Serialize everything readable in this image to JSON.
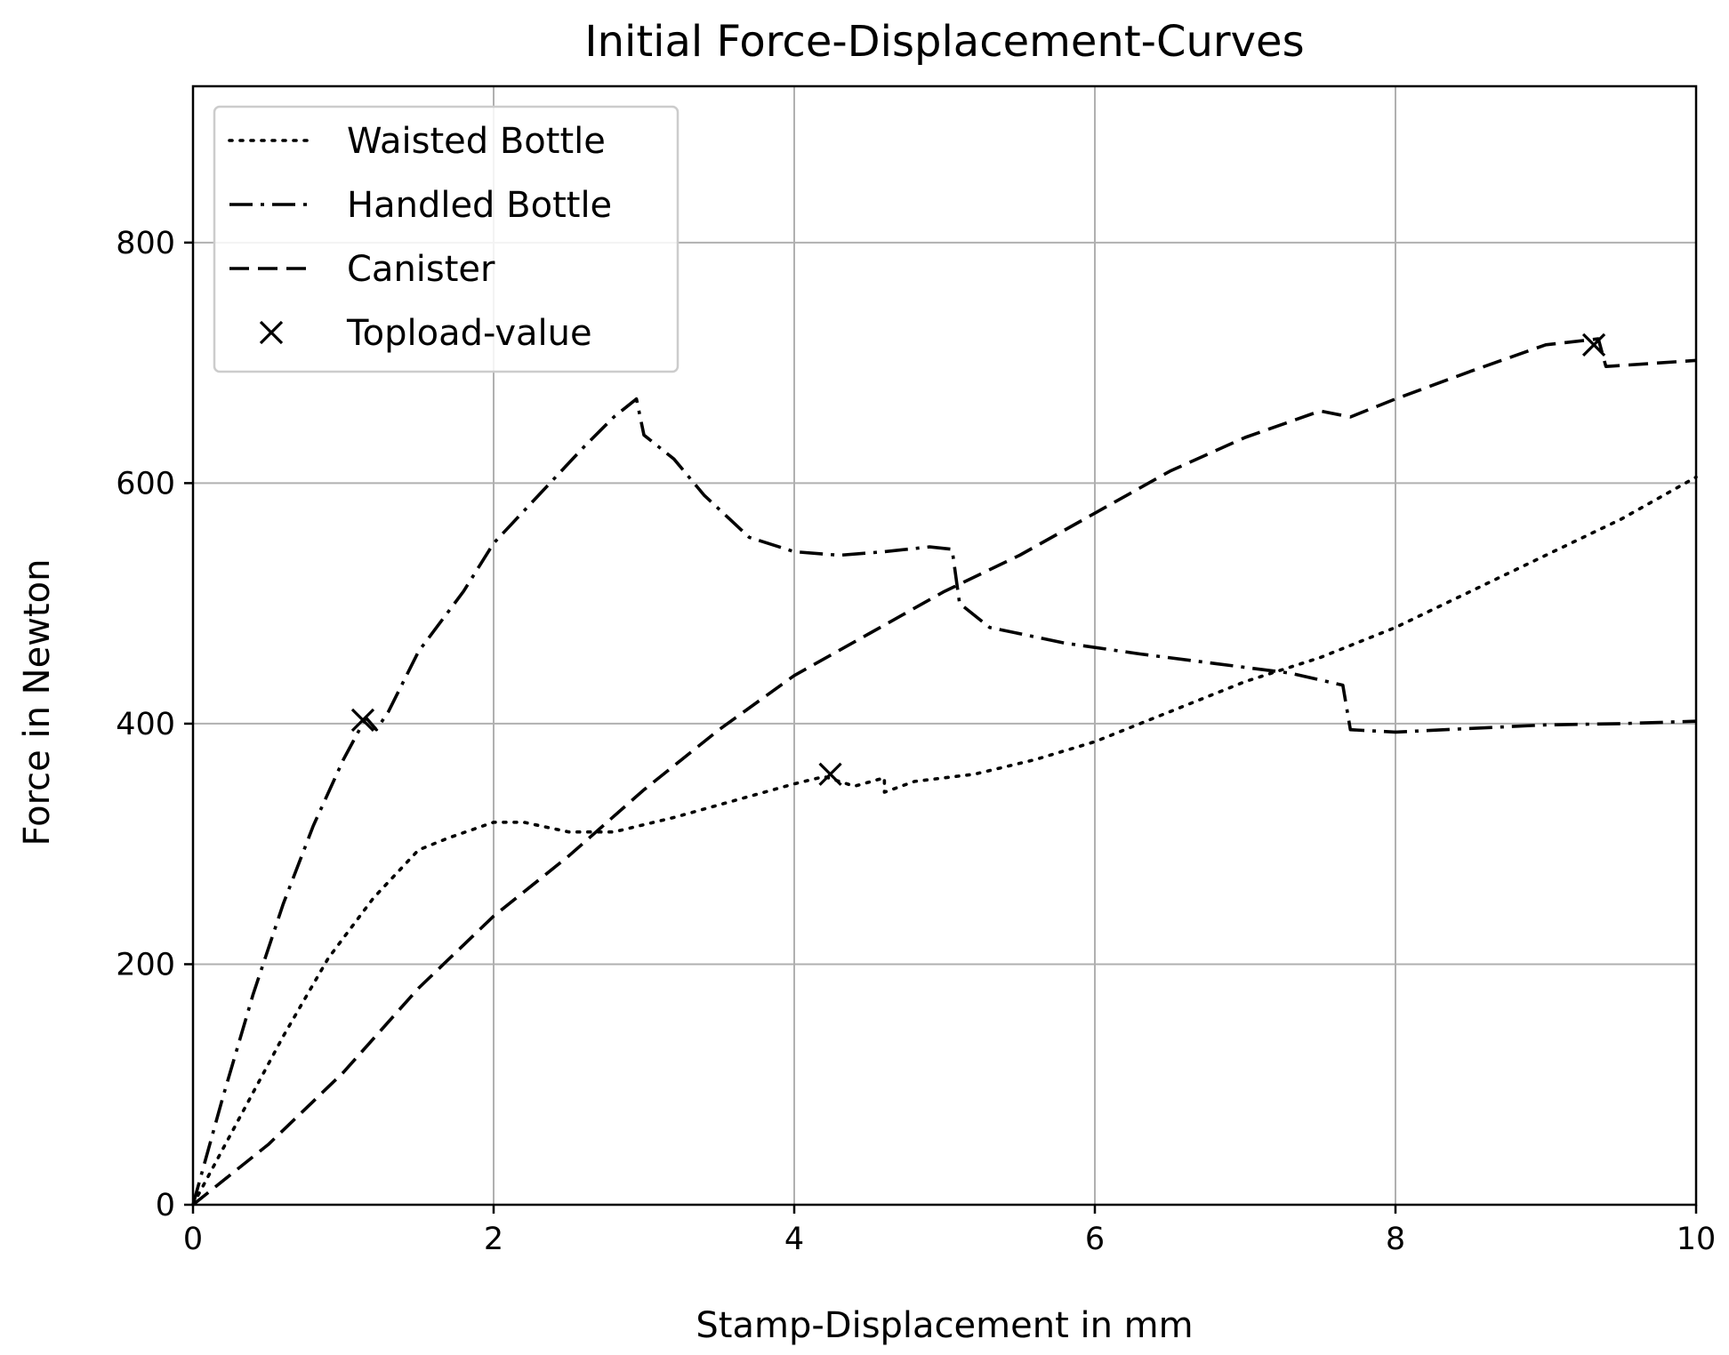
{
  "chart_data": {
    "type": "line",
    "title": "Initial Force-Displacement-Curves",
    "xlabel": "Stamp-Displacement in mm",
    "ylabel": "Force in Newton",
    "xlim": [
      0,
      10
    ],
    "ylim": [
      0,
      930
    ],
    "x_ticks": [
      0,
      2,
      4,
      6,
      8,
      10
    ],
    "y_ticks": [
      0,
      200,
      400,
      600,
      800
    ],
    "x_tick_labels": [
      "0",
      "2",
      "4",
      "6",
      "8",
      "10"
    ],
    "y_tick_labels": [
      "0",
      "200",
      "400",
      "600",
      "800"
    ],
    "grid": true,
    "legend_position": "top-left",
    "legend": [
      "Waisted Bottle",
      "Handled Bottle",
      "Canister",
      "Topload-value"
    ],
    "series": [
      {
        "name": "Waisted Bottle",
        "style": "dotted",
        "color": "#000000",
        "points": [
          [
            0,
            0
          ],
          [
            0.3,
            70
          ],
          [
            0.6,
            140
          ],
          [
            0.9,
            205
          ],
          [
            1.2,
            255
          ],
          [
            1.5,
            295
          ],
          [
            1.7,
            305
          ],
          [
            2.0,
            318
          ],
          [
            2.2,
            318
          ],
          [
            2.5,
            310
          ],
          [
            2.8,
            310
          ],
          [
            3.2,
            322
          ],
          [
            3.6,
            336
          ],
          [
            4.0,
            350
          ],
          [
            4.2,
            356
          ],
          [
            4.4,
            348
          ],
          [
            4.6,
            355
          ],
          [
            4.6,
            343
          ],
          [
            4.8,
            352
          ],
          [
            5.2,
            358
          ],
          [
            5.6,
            370
          ],
          [
            6.0,
            385
          ],
          [
            6.5,
            410
          ],
          [
            7.0,
            435
          ],
          [
            7.5,
            455
          ],
          [
            8.0,
            480
          ],
          [
            8.5,
            510
          ],
          [
            9.0,
            540
          ],
          [
            9.5,
            570
          ],
          [
            10.0,
            605
          ]
        ]
      },
      {
        "name": "Handled Bottle",
        "style": "dashdot",
        "color": "#000000",
        "points": [
          [
            0,
            0
          ],
          [
            0.2,
            90
          ],
          [
            0.4,
            175
          ],
          [
            0.6,
            250
          ],
          [
            0.8,
            315
          ],
          [
            1.0,
            370
          ],
          [
            1.15,
            405
          ],
          [
            1.22,
            395
          ],
          [
            1.3,
            410
          ],
          [
            1.5,
            460
          ],
          [
            1.8,
            510
          ],
          [
            2.0,
            550
          ],
          [
            2.3,
            590
          ],
          [
            2.6,
            630
          ],
          [
            2.8,
            655
          ],
          [
            2.95,
            670
          ],
          [
            3.0,
            640
          ],
          [
            3.2,
            620
          ],
          [
            3.4,
            590
          ],
          [
            3.7,
            555
          ],
          [
            4.0,
            543
          ],
          [
            4.3,
            540
          ],
          [
            4.6,
            543
          ],
          [
            4.9,
            547
          ],
          [
            5.05,
            545
          ],
          [
            5.1,
            500
          ],
          [
            5.3,
            480
          ],
          [
            5.8,
            467
          ],
          [
            6.3,
            458
          ],
          [
            6.8,
            450
          ],
          [
            7.3,
            442
          ],
          [
            7.65,
            432
          ],
          [
            7.7,
            395
          ],
          [
            8.0,
            393
          ],
          [
            8.5,
            396
          ],
          [
            9.0,
            399
          ],
          [
            9.5,
            400
          ],
          [
            10.0,
            402
          ]
        ]
      },
      {
        "name": "Canister",
        "style": "dashed",
        "color": "#000000",
        "points": [
          [
            0,
            0
          ],
          [
            0.5,
            50
          ],
          [
            1.0,
            110
          ],
          [
            1.5,
            180
          ],
          [
            2.0,
            240
          ],
          [
            2.5,
            290
          ],
          [
            3.0,
            345
          ],
          [
            3.5,
            395
          ],
          [
            4.0,
            440
          ],
          [
            4.5,
            475
          ],
          [
            5.0,
            510
          ],
          [
            5.5,
            540
          ],
          [
            6.0,
            575
          ],
          [
            6.5,
            610
          ],
          [
            7.0,
            638
          ],
          [
            7.5,
            660
          ],
          [
            7.7,
            655
          ],
          [
            8.0,
            670
          ],
          [
            8.5,
            693
          ],
          [
            9.0,
            715
          ],
          [
            9.35,
            720
          ],
          [
            9.4,
            697
          ],
          [
            10.0,
            702
          ]
        ]
      }
    ],
    "markers": {
      "name": "Topload-value",
      "symbol": "x",
      "color": "#000000",
      "points": [
        [
          1.13,
          403
        ],
        [
          4.24,
          358
        ],
        [
          9.32,
          715
        ]
      ]
    }
  }
}
